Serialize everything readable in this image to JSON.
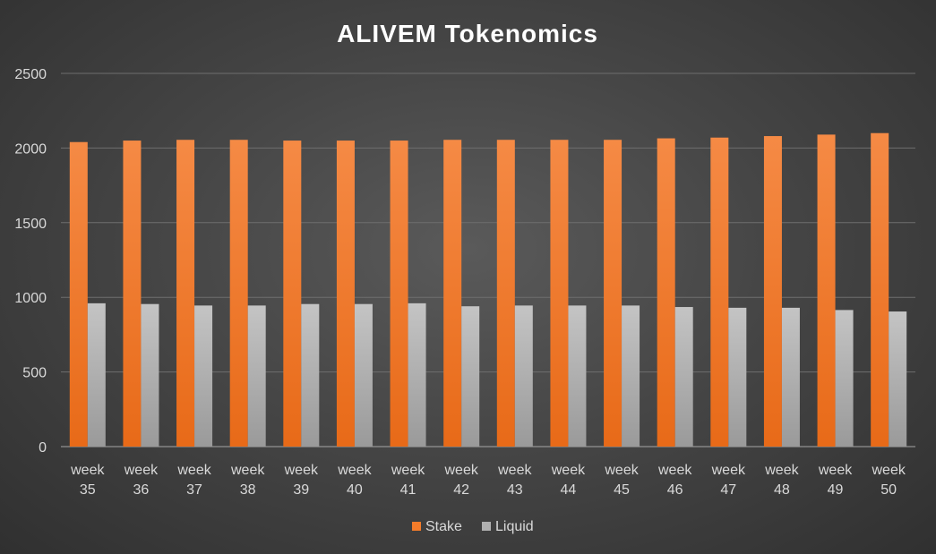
{
  "chart_data": {
    "type": "bar",
    "title": "ALIVEM Tokenomics",
    "xlabel": "",
    "ylabel": "",
    "ylim": [
      0,
      2500
    ],
    "yticks": [
      0,
      500,
      1000,
      1500,
      2000,
      2500
    ],
    "grid": true,
    "legend_position": "bottom",
    "categories": [
      [
        "week",
        "35"
      ],
      [
        "week",
        "36"
      ],
      [
        "week",
        "37"
      ],
      [
        "week",
        "38"
      ],
      [
        "week",
        "39"
      ],
      [
        "week",
        "40"
      ],
      [
        "week",
        "41"
      ],
      [
        "week",
        "42"
      ],
      [
        "week",
        "43"
      ],
      [
        "week",
        "44"
      ],
      [
        "week",
        "45"
      ],
      [
        "week",
        "46"
      ],
      [
        "week",
        "47"
      ],
      [
        "week",
        "48"
      ],
      [
        "week",
        "49"
      ],
      [
        "week",
        "50"
      ]
    ],
    "series": [
      {
        "name": "Stake",
        "color": "#f47c2a",
        "values": [
          2040,
          2050,
          2055,
          2055,
          2050,
          2050,
          2050,
          2055,
          2055,
          2055,
          2055,
          2065,
          2070,
          2080,
          2090,
          2100
        ]
      },
      {
        "name": "Liquid",
        "color": "#b0b0b0",
        "values": [
          960,
          955,
          945,
          945,
          955,
          955,
          960,
          940,
          945,
          945,
          945,
          935,
          930,
          930,
          915,
          905
        ]
      }
    ]
  }
}
